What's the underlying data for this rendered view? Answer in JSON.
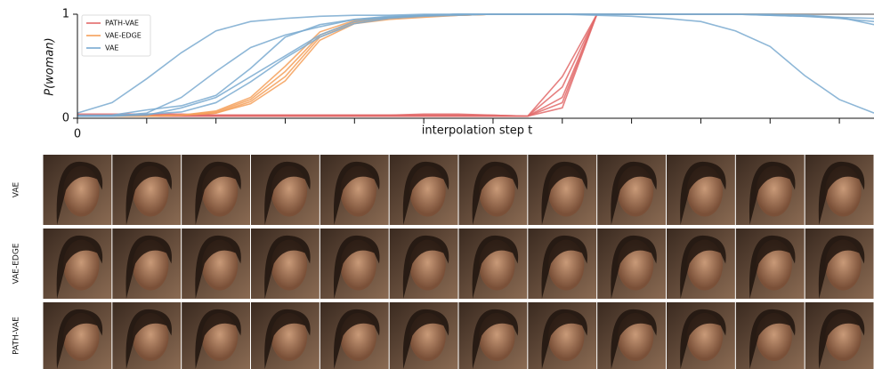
{
  "chart_data": {
    "type": "line",
    "ylabel": "P(woman)",
    "xlabel": "interpolation step t",
    "x": [
      0,
      0.5,
      1,
      1.5,
      2,
      2.5,
      3,
      3.5,
      4,
      4.5,
      5,
      5.5,
      6,
      6.5,
      7,
      7.5,
      8,
      8.5,
      9,
      9.5,
      10,
      10.5,
      11,
      11.5
    ],
    "xlim": [
      0,
      11.5
    ],
    "ylim": [
      0,
      1
    ],
    "xticks": [
      0,
      {
        "value": 1,
        "label": null
      },
      {
        "value": 2,
        "label": null
      },
      {
        "value": 3,
        "label": null
      },
      {
        "value": 4,
        "label": null
      },
      {
        "value": 5,
        "label": null
      },
      {
        "value": 6,
        "label": null
      },
      {
        "value": 7,
        "label": null
      },
      {
        "value": 8,
        "label": null
      },
      {
        "value": 9,
        "label": null
      },
      {
        "value": 10,
        "label": null
      },
      {
        "value": 11,
        "label": null
      }
    ],
    "yticks": [
      0,
      1
    ],
    "legend": "upper left",
    "series": [
      {
        "name": "PATH-VAE",
        "color": "#e26a6a",
        "runs": [
          {
            "values": [
              0.03,
              0.03,
              0.03,
              0.03,
              0.03,
              0.03,
              0.03,
              0.03,
              0.03,
              0.03,
              0.03,
              0.03,
              0.02,
              0.02,
              0.4,
              1,
              1,
              1,
              1,
              1,
              1,
              1,
              1,
              1
            ]
          },
          {
            "values": [
              0.02,
              0.02,
              0.02,
              0.02,
              0.02,
              0.02,
              0.02,
              0.02,
              0.02,
              0.02,
              0.02,
              0.02,
              0.02,
              0.02,
              0.3,
              1,
              1,
              1,
              1,
              1,
              1,
              1,
              1,
              1
            ]
          },
          {
            "values": [
              0.03,
              0.03,
              0.03,
              0.03,
              0.03,
              0.03,
              0.03,
              0.03,
              0.03,
              0.03,
              0.04,
              0.04,
              0.03,
              0.02,
              0.2,
              1,
              1,
              1,
              1,
              1,
              1,
              1,
              1,
              1
            ]
          },
          {
            "values": [
              0.02,
              0.02,
              0.02,
              0.02,
              0.02,
              0.02,
              0.02,
              0.02,
              0.02,
              0.02,
              0.02,
              0.02,
              0.02,
              0.02,
              0.15,
              1,
              1,
              1,
              1,
              1,
              1,
              1,
              1,
              1
            ]
          },
          {
            "values": [
              0.04,
              0.04,
              0.04,
              0.04,
              0.03,
              0.03,
              0.03,
              0.03,
              0.03,
              0.03,
              0.03,
              0.03,
              0.03,
              0.02,
              0.1,
              1,
              1,
              1,
              1,
              1,
              1,
              1,
              1,
              1
            ]
          }
        ]
      },
      {
        "name": "VAE-EDGE",
        "color": "#f5a05a",
        "runs": [
          {
            "values": [
              0.02,
              0.02,
              0.02,
              0.03,
              0.06,
              0.18,
              0.45,
              0.8,
              0.93,
              0.96,
              0.98,
              0.99,
              1,
              1,
              1,
              1,
              1,
              1,
              1,
              1,
              1,
              1,
              1,
              1
            ]
          },
          {
            "values": [
              0.02,
              0.02,
              0.02,
              0.03,
              0.05,
              0.16,
              0.4,
              0.78,
              0.92,
              0.96,
              0.98,
              0.99,
              1,
              1,
              1,
              1,
              1,
              1,
              1,
              1,
              1,
              1,
              1,
              1
            ]
          },
          {
            "values": [
              0.02,
              0.02,
              0.02,
              0.03,
              0.07,
              0.2,
              0.5,
              0.83,
              0.94,
              0.97,
              0.98,
              0.99,
              1,
              1,
              1,
              1,
              1,
              1,
              1,
              1,
              1,
              1,
              1,
              1
            ]
          },
          {
            "values": [
              0.02,
              0.02,
              0.02,
              0.03,
              0.05,
              0.14,
              0.36,
              0.75,
              0.91,
              0.95,
              0.97,
              0.99,
              1,
              1,
              1,
              1,
              1,
              1,
              1,
              1,
              1,
              1,
              1,
              1
            ]
          }
        ]
      },
      {
        "name": "VAE",
        "color": "#7aaad0",
        "runs": [
          {
            "values": [
              0.05,
              0.15,
              0.38,
              0.63,
              0.84,
              0.93,
              0.96,
              0.98,
              0.99,
              0.99,
              1,
              1,
              1,
              1,
              1,
              1,
              1,
              1,
              1,
              1,
              0.99,
              0.98,
              0.97,
              0.96
            ]
          },
          {
            "values": [
              0.02,
              0.02,
              0.05,
              0.2,
              0.45,
              0.68,
              0.8,
              0.88,
              0.95,
              0.98,
              0.99,
              1,
              1,
              1,
              1,
              1,
              1,
              1,
              1,
              1,
              0.99,
              0.98,
              0.96,
              0.93
            ]
          },
          {
            "values": [
              0.02,
              0.03,
              0.08,
              0.12,
              0.22,
              0.48,
              0.78,
              0.9,
              0.95,
              0.97,
              0.99,
              1,
              1,
              1,
              1,
              1,
              1,
              1,
              1,
              1,
              1,
              0.99,
              0.97,
              0.9
            ]
          },
          {
            "values": [
              0.02,
              0.02,
              0.03,
              0.1,
              0.2,
              0.4,
              0.6,
              0.8,
              0.93,
              0.97,
              0.99,
              1,
              1,
              1,
              1,
              1,
              1,
              1,
              1,
              1,
              1,
              1,
              1,
              1
            ]
          },
          {
            "values": [
              0.03,
              0.03,
              0.04,
              0.06,
              0.15,
              0.35,
              0.58,
              0.78,
              0.91,
              0.96,
              0.98,
              0.99,
              1,
              1,
              1,
              0.99,
              0.98,
              0.96,
              0.93,
              0.84,
              0.69,
              0.41,
              0.18,
              0.05
            ]
          }
        ]
      }
    ],
    "image_rows": [
      "VAE",
      "VAE-EDGE",
      "PATH-VAE"
    ]
  }
}
